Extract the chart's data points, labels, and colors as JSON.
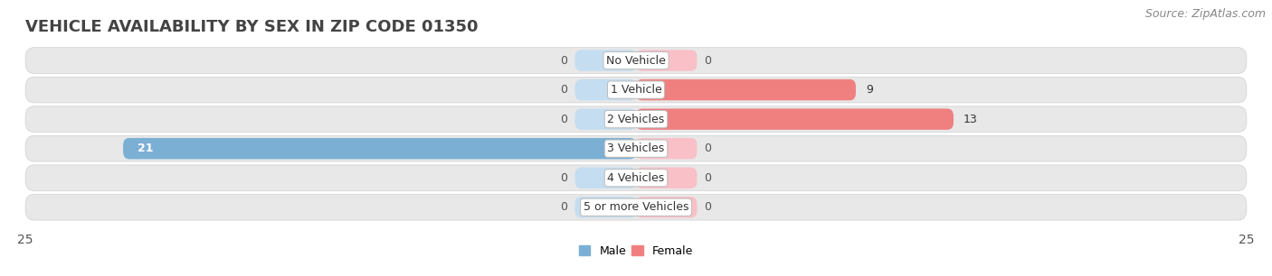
{
  "title": "VEHICLE AVAILABILITY BY SEX IN ZIP CODE 01350",
  "source": "Source: ZipAtlas.com",
  "categories": [
    "No Vehicle",
    "1 Vehicle",
    "2 Vehicles",
    "3 Vehicles",
    "4 Vehicles",
    "5 or more Vehicles"
  ],
  "male_values": [
    0,
    0,
    0,
    21,
    0,
    0
  ],
  "female_values": [
    0,
    9,
    13,
    0,
    0,
    0
  ],
  "male_color": "#7bafd4",
  "female_color": "#f08080",
  "male_placeholder_color": "#c5ddf0",
  "female_placeholder_color": "#f9c0c8",
  "male_label": "Male",
  "female_label": "Female",
  "xlim": 25,
  "placeholder_val": 2.5,
  "background_color": "#f5f5f5",
  "row_background": "#e8e8e8",
  "title_fontsize": 13,
  "source_fontsize": 9,
  "tick_fontsize": 10,
  "cat_fontsize": 9,
  "val_fontsize": 9
}
